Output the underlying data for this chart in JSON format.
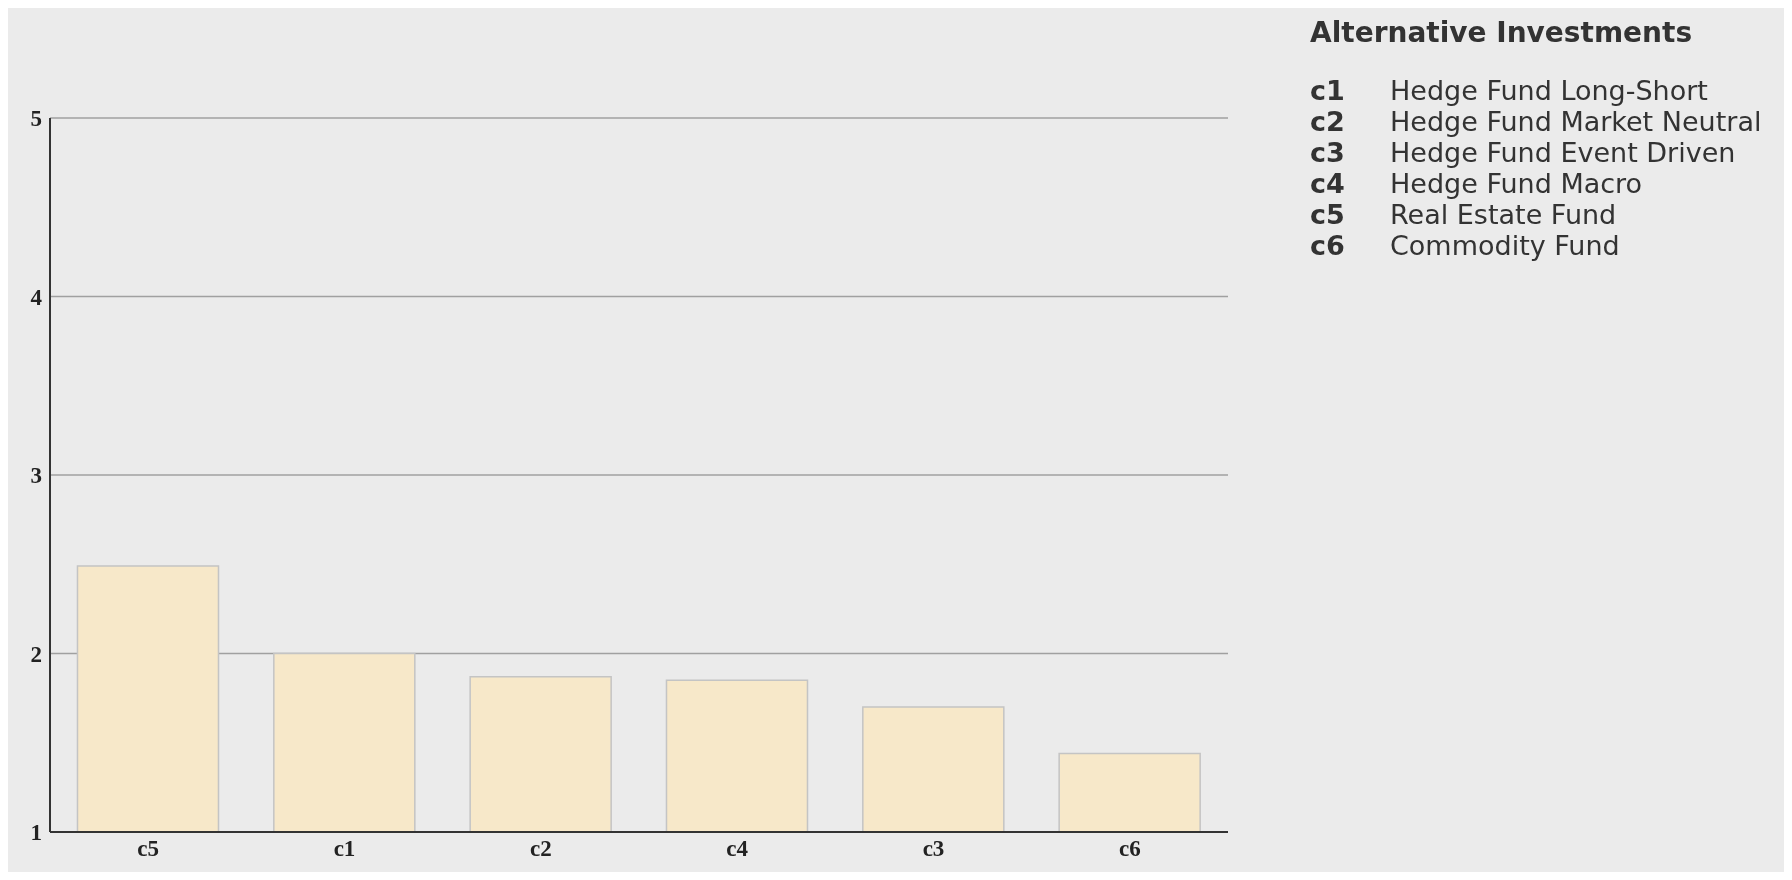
{
  "chart_data": {
    "type": "bar",
    "title": "Alternative Investments",
    "categories": [
      "c5",
      "c1",
      "c2",
      "c4",
      "c3",
      "c6"
    ],
    "values": [
      2.49,
      2.0,
      1.87,
      1.85,
      1.7,
      1.44
    ],
    "color": "#f7e8c9",
    "ylim": [
      1,
      5
    ],
    "yticks": [
      1,
      2,
      3,
      4,
      5
    ],
    "grid": "y",
    "annotations": [
      "c1 Hedge Fund Long-Short",
      "c2 Hedge Fund Market Neutral",
      "c3 Hedge Fund Event Driven",
      "c4 Hedge Fund Macro",
      "c5 Real Estate Fund",
      "c6 Commodity Fund"
    ]
  }
}
